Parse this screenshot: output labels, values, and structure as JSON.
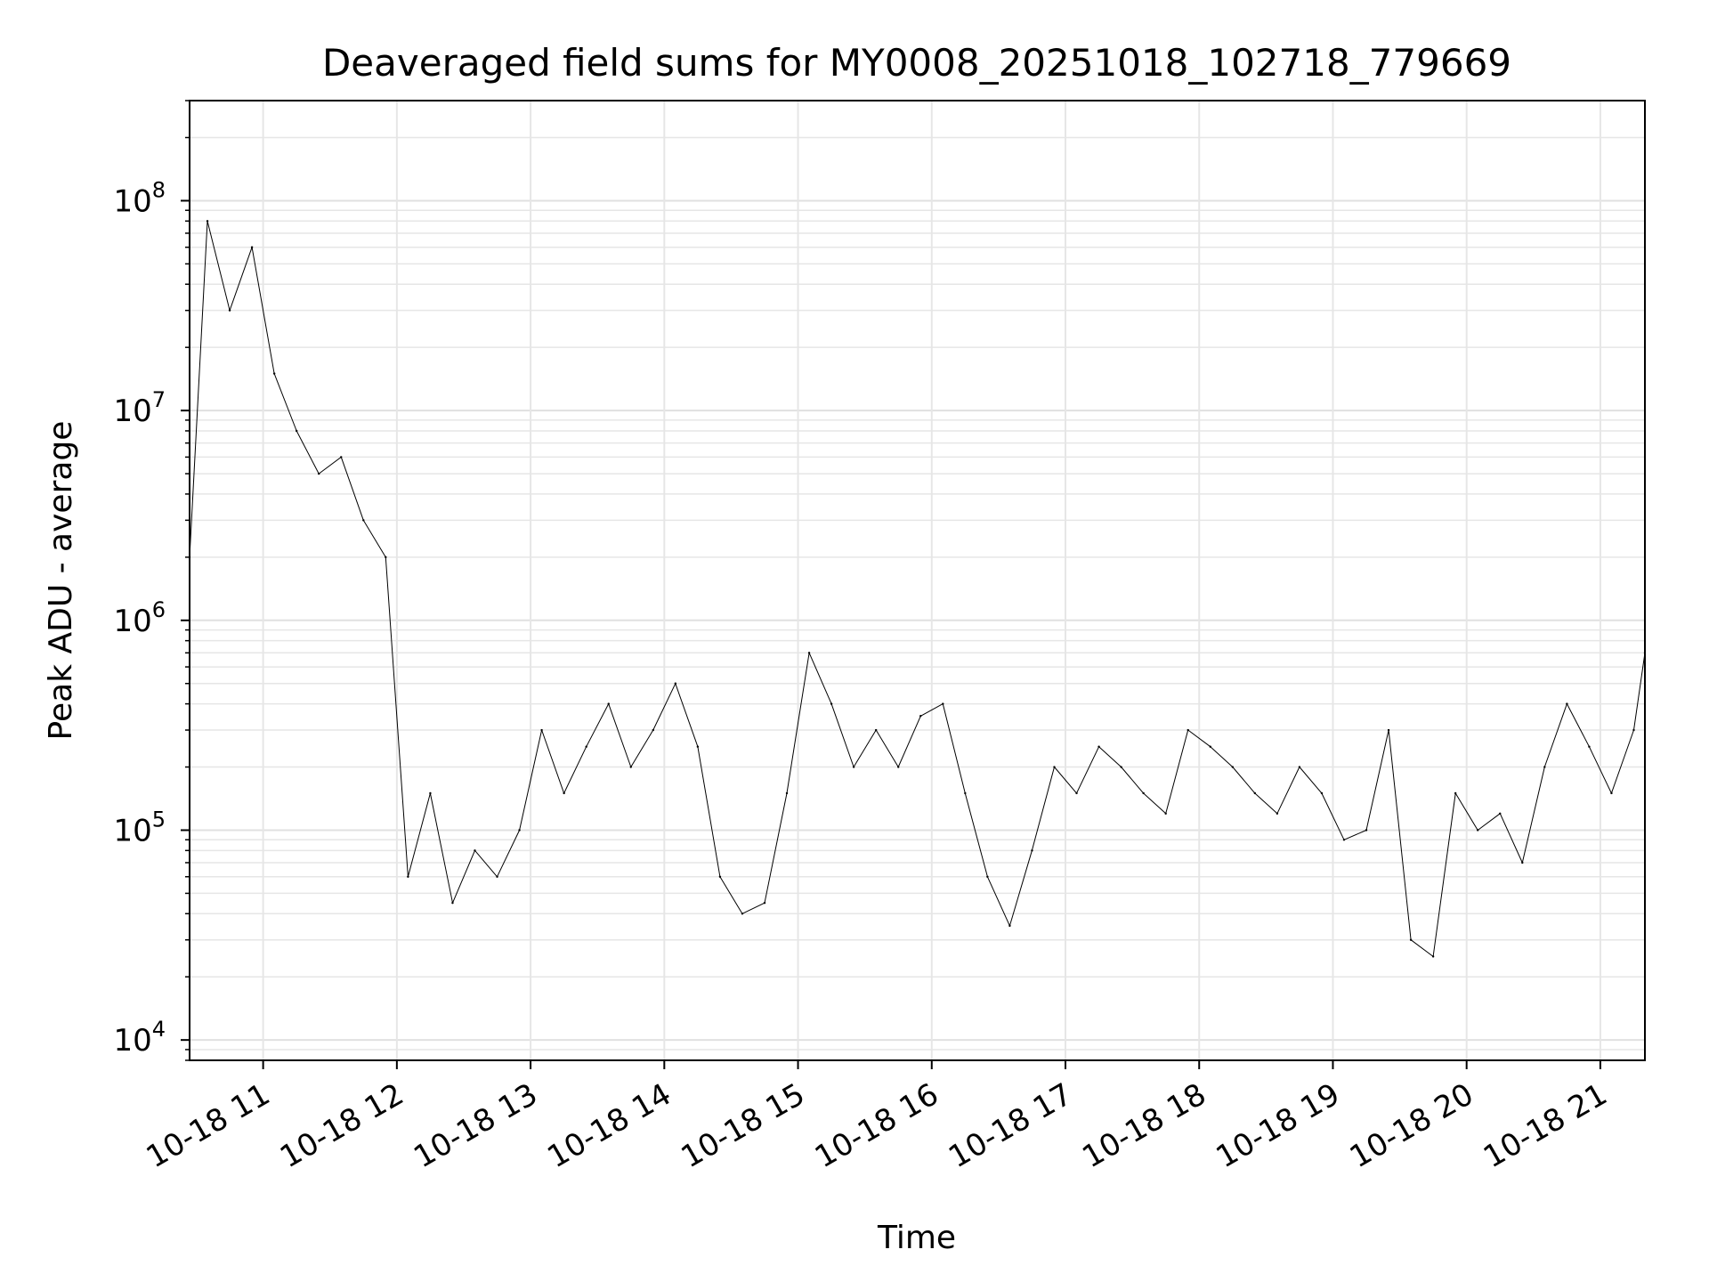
{
  "chart_data": {
    "type": "line",
    "title": "Deaveraged field sums for MY0008_20251018_102718_779669",
    "xlabel": "Time",
    "ylabel": "Peak ADU - average",
    "y_scale": "log",
    "grid": true,
    "x_tick_labels": [
      "10-18 11",
      "10-18 12",
      "10-18 13",
      "10-18 14",
      "10-18 15",
      "10-18 16",
      "10-18 17",
      "10-18 18",
      "10-18 19",
      "10-18 20",
      "10-18 21"
    ],
    "x_ticks": [
      "2025-10-18 11:00",
      "2025-10-18 12:00",
      "2025-10-18 13:00",
      "2025-10-18 14:00",
      "2025-10-18 15:00",
      "2025-10-18 16:00",
      "2025-10-18 17:00",
      "2025-10-18 18:00",
      "2025-10-18 19:00",
      "2025-10-18 20:00",
      "2025-10-18 21:00"
    ],
    "y_ticks": [
      {
        "base": "10",
        "exp": "4",
        "value": 10000
      },
      {
        "base": "10",
        "exp": "5",
        "value": 100000
      },
      {
        "base": "10",
        "exp": "6",
        "value": 1000000
      },
      {
        "base": "10",
        "exp": "7",
        "value": 10000000
      },
      {
        "base": "10",
        "exp": "8",
        "value": 100000000
      }
    ],
    "xlim": [
      "2025-10-18 10:27",
      "2025-10-18 21:20"
    ],
    "ylim": [
      8000,
      300000000
    ],
    "series": [
      {
        "color": "#000000",
        "line_width": 1,
        "x": [
          "10:27",
          "10:35",
          "10:45",
          "10:55",
          "11:05",
          "11:15",
          "11:25",
          "11:35",
          "11:45",
          "11:55",
          "12:05",
          "12:15",
          "12:25",
          "12:35",
          "12:45",
          "12:55",
          "13:05",
          "13:15",
          "13:25",
          "13:35",
          "13:45",
          "13:55",
          "14:05",
          "14:15",
          "14:25",
          "14:35",
          "14:45",
          "14:55",
          "15:05",
          "15:15",
          "15:25",
          "15:35",
          "15:45",
          "15:55",
          "16:05",
          "16:15",
          "16:25",
          "16:35",
          "16:45",
          "16:55",
          "17:05",
          "17:15",
          "17:25",
          "17:35",
          "17:45",
          "17:55",
          "18:05",
          "18:15",
          "18:25",
          "18:35",
          "18:45",
          "18:55",
          "19:05",
          "19:15",
          "19:25",
          "19:35",
          "19:45",
          "19:55",
          "20:05",
          "20:15",
          "20:25",
          "20:35",
          "20:45",
          "20:55",
          "21:05",
          "21:15",
          "21:20"
        ],
        "y": [
          2000000,
          80000000,
          30000000,
          60000000,
          15000000,
          8000000,
          5000000,
          6000000,
          3000000,
          2000000,
          60000,
          150000,
          45000,
          80000,
          60000,
          100000,
          300000,
          150000,
          250000,
          400000,
          200000,
          300000,
          500000,
          250000,
          60000,
          40000,
          45000,
          150000,
          700000,
          400000,
          200000,
          300000,
          200000,
          350000,
          400000,
          150000,
          60000,
          35000,
          80000,
          200000,
          150000,
          250000,
          200000,
          150000,
          120000,
          300000,
          250000,
          200000,
          150000,
          120000,
          200000,
          150000,
          90000,
          100000,
          300000,
          30000,
          25000,
          150000,
          100000,
          120000,
          70000,
          200000,
          400000,
          250000,
          150000,
          300000,
          700000
        ]
      }
    ]
  }
}
